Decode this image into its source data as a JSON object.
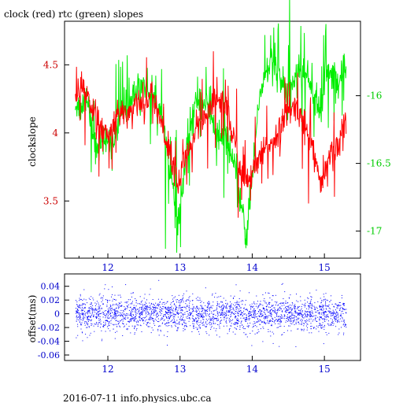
{
  "title": "clock (red) rtc (green) slopes",
  "footer": "2016-07-11 info.physics.ubc.ca",
  "colors": {
    "clock": "#ff0000",
    "rtc": "#00ee00",
    "offset": "#0000ff",
    "axis": "#000000"
  },
  "chart_data": [
    {
      "type": "line",
      "ylabel": "clockslope",
      "xlim": [
        11.4,
        15.5
      ],
      "ylim_left": [
        3.08,
        4.82
      ],
      "ylim_right": [
        -17.2,
        -15.45
      ],
      "x_ticks": [
        "12",
        "13",
        "14",
        "15"
      ],
      "y_ticks_left": [
        "3.5",
        "4",
        "4.5"
      ],
      "y_ticks_right": [
        "-17",
        "-16.5",
        "-16"
      ],
      "series": [
        {
          "key": "clock",
          "axis": "left",
          "color": "#ff0000",
          "x": [
            11.55,
            11.62,
            11.7,
            11.78,
            11.85,
            11.92,
            12.0,
            12.1,
            12.2,
            12.3,
            12.4,
            12.5,
            12.6,
            12.7,
            12.8,
            12.9,
            12.97,
            13.05,
            13.15,
            13.25,
            13.35,
            13.45,
            13.55,
            13.65,
            13.75,
            13.85,
            13.92,
            14.0,
            14.1,
            14.2,
            14.3,
            14.4,
            14.5,
            14.6,
            14.7,
            14.8,
            14.9,
            14.95,
            15.0,
            15.05,
            15.12,
            15.2,
            15.25,
            15.3
          ],
          "y": [
            4.25,
            4.3,
            4.28,
            4.2,
            4.1,
            4.0,
            3.95,
            4.1,
            4.15,
            4.15,
            4.25,
            4.2,
            4.3,
            4.15,
            3.95,
            3.8,
            3.6,
            3.8,
            3.9,
            4.0,
            4.1,
            4.2,
            4.25,
            4.2,
            3.95,
            3.7,
            3.62,
            3.7,
            3.8,
            3.9,
            3.95,
            4.05,
            4.15,
            4.2,
            4.1,
            3.95,
            3.75,
            3.6,
            3.65,
            3.8,
            3.85,
            3.9,
            4.05,
            4.1
          ]
        },
        {
          "key": "rtc",
          "axis": "right",
          "color": "#00ee00",
          "x": [
            11.55,
            11.62,
            11.7,
            11.78,
            11.85,
            11.92,
            12.0,
            12.1,
            12.2,
            12.3,
            12.4,
            12.5,
            12.6,
            12.7,
            12.8,
            12.9,
            12.97,
            13.05,
            13.15,
            13.25,
            13.35,
            13.45,
            13.55,
            13.65,
            13.75,
            13.85,
            13.92,
            14.0,
            14.1,
            14.2,
            14.3,
            14.4,
            14.5,
            14.6,
            14.7,
            14.8,
            14.9,
            14.95,
            15.0,
            15.05,
            15.12,
            15.2,
            15.25,
            15.3
          ],
          "y": [
            -16.05,
            -16.1,
            -16.0,
            -16.2,
            -16.45,
            -16.3,
            -16.35,
            -16.3,
            -16.1,
            -16.05,
            -15.95,
            -15.9,
            -16.0,
            -16.05,
            -16.3,
            -16.7,
            -17.0,
            -16.6,
            -16.2,
            -16.0,
            -16.05,
            -16.2,
            -16.35,
            -16.3,
            -16.55,
            -16.85,
            -17.05,
            -16.6,
            -16.0,
            -15.8,
            -15.75,
            -15.9,
            -16.0,
            -15.85,
            -15.8,
            -15.9,
            -16.05,
            -16.15,
            -15.9,
            -15.8,
            -15.85,
            -15.95,
            -15.75,
            -15.8
          ]
        }
      ]
    },
    {
      "type": "scatter",
      "ylabel": "offset(ms)",
      "xlim": [
        11.4,
        15.5
      ],
      "ylim": [
        -0.068,
        0.058
      ],
      "x_ticks": [
        "12",
        "13",
        "14",
        "15"
      ],
      "y_ticks": [
        "0.04",
        "0.02",
        "0",
        "-0.02",
        "-0.04",
        "-0.06"
      ],
      "series": [
        {
          "key": "offset",
          "color": "#0000ff",
          "x_range": [
            11.55,
            15.3
          ],
          "spread_ms": 0.012,
          "outlier_max_ms": 0.05
        }
      ]
    }
  ]
}
